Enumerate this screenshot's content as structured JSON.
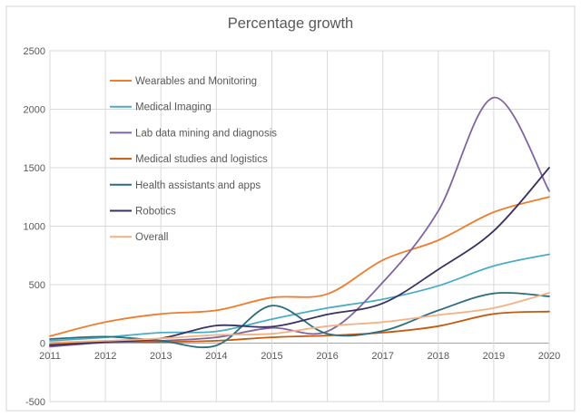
{
  "chart_data": {
    "type": "line",
    "title": "Percentage growth",
    "x": [
      2011,
      2012,
      2013,
      2014,
      2015,
      2016,
      2017,
      2018,
      2019,
      2020
    ],
    "x_tick_labels": [
      "2011",
      "2012",
      "2013",
      "2014",
      "2015",
      "2016",
      "2017",
      "2018",
      "2019",
      "2020"
    ],
    "y_ticks": [
      2500,
      2000,
      1500,
      1000,
      500,
      0,
      -500
    ],
    "ylim": [
      -500,
      2500
    ],
    "grid": true,
    "smoothed_lines": true,
    "legend_position": "inside-top-left",
    "series": [
      {
        "name": "Wearables and Monitoring",
        "color": "#ED7D31",
        "values": [
          60,
          180,
          250,
          280,
          390,
          420,
          710,
          880,
          1120,
          1250
        ]
      },
      {
        "name": "Medical Imaging",
        "color": "#4BACC6",
        "values": [
          20,
          50,
          90,
          100,
          205,
          300,
          375,
          490,
          660,
          760
        ]
      },
      {
        "name": "Lab data mining and diagnosis",
        "color": "#8064A2",
        "values": [
          -30,
          5,
          20,
          50,
          130,
          100,
          520,
          1130,
          2100,
          1300
        ]
      },
      {
        "name": "Medical studies and logistics",
        "color": "#C55A11",
        "values": [
          -10,
          10,
          10,
          20,
          50,
          65,
          90,
          145,
          250,
          270
        ]
      },
      {
        "name": "Health assistants and apps",
        "color": "#2D6E7E",
        "values": [
          35,
          55,
          20,
          -20,
          320,
          80,
          105,
          280,
          425,
          400
        ]
      },
      {
        "name": "Robotics",
        "color": "#3B3160",
        "values": [
          -20,
          10,
          40,
          150,
          140,
          245,
          340,
          630,
          960,
          1500
        ]
      },
      {
        "name": "Overall",
        "color": "#F4B183",
        "values": [
          5,
          20,
          40,
          70,
          80,
          145,
          180,
          240,
          300,
          430
        ]
      }
    ],
    "colors": {
      "title_text": "#595959",
      "tick_text": "#595959",
      "gridline": "#D9D9D9",
      "plot_border": "#D9D9D9",
      "zero_axis": "#A6A6A6",
      "chart_frame": "#D5D5D5",
      "background": "#FFFFFF"
    }
  }
}
